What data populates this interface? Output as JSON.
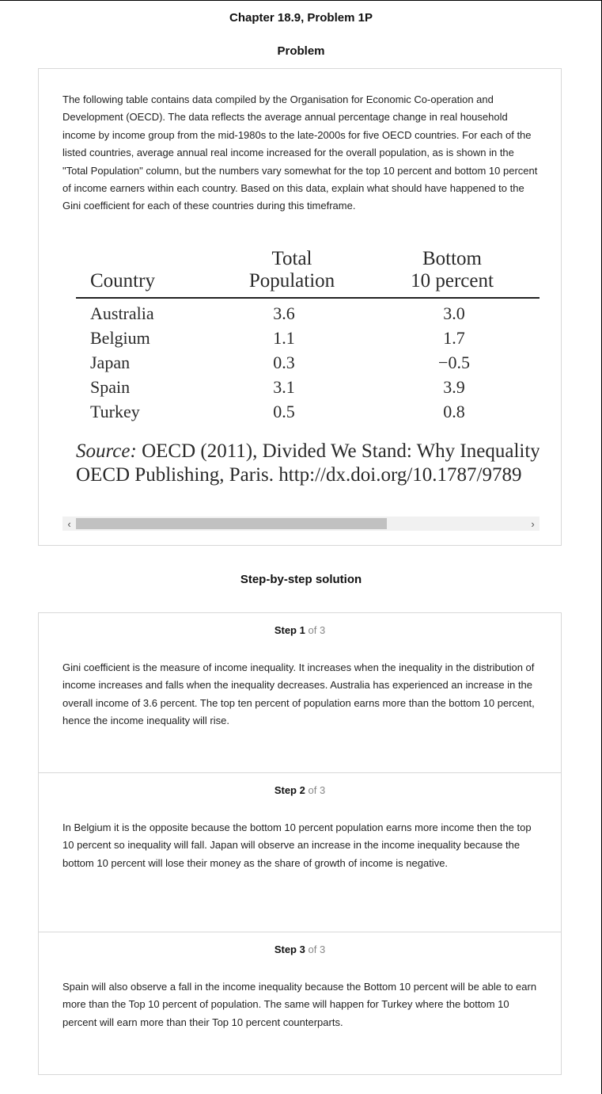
{
  "header": {
    "chapter_title": "Chapter 18.9, Problem 1P",
    "problem_heading": "Problem"
  },
  "problem": {
    "text": "The following table contains data compiled by the Organisation for Economic Co-operation and Development (OECD). The data reflects the average annual percentage change in real household income by income group from the mid-1980s to the late-2000s for five OECD countries. For each of the listed countries, average annual real income increased for the overall population, as is shown in the \"Total Population\" column, but the numbers vary somewhat for the top 10 percent and bottom 10 percent of income earners within each country. Based on this data, explain what should have happened to the Gini coefficient for each of these countries during this timeframe.",
    "table": {
      "headers": {
        "country": "Country",
        "total_line1": "Total",
        "total_line2": "Population",
        "bottom_line1": "Bottom",
        "bottom_line2": "10 percent"
      },
      "rows": [
        {
          "country": "Australia",
          "total": "3.6",
          "bottom": "3.0"
        },
        {
          "country": "Belgium",
          "total": "1.1",
          "bottom": "1.7"
        },
        {
          "country": "Japan",
          "total": "0.3",
          "bottom": "−0.5"
        },
        {
          "country": "Spain",
          "total": "3.1",
          "bottom": "3.9"
        },
        {
          "country": "Turkey",
          "total": "0.5",
          "bottom": "0.8"
        }
      ],
      "source_label": "Source:",
      "source_rest_line1": " OECD (2011), Divided We Stand: Why Inequality",
      "source_line2": "OECD Publishing, Paris. http://dx.doi.org/10.1787/9789"
    },
    "scrollbar": {
      "left_arrow_icon": "chevron-left-icon",
      "right_arrow_icon": "chevron-right-icon"
    }
  },
  "solution": {
    "heading": "Step-by-step solution",
    "steps": [
      {
        "word": "Step",
        "number": "1",
        "of": "of 3",
        "text": "Gini coefficient is the measure of income inequality. It increases when the inequality in the distribution of income increases and falls when the inequality decreases. Australia has experienced an increase in the overall income of 3.6 percent. The top ten percent of population earns more than the bottom 10 percent, hence the income inequality will rise."
      },
      {
        "word": "Step",
        "number": "2",
        "of": "of 3",
        "text": "In Belgium it is the opposite because the bottom 10 percent population earns more income then the top 10 percent so inequality will fall. Japan will observe an increase in the income inequality because the bottom 10 percent will lose their money as the share of growth of income is negative."
      },
      {
        "word": "Step",
        "number": "3",
        "of": "of 3",
        "text": "Spain will also observe a fall in the income inequality because the Bottom 10 percent will be able to earn more than the Top 10 percent of population. The same will happen for Turkey where the bottom 10 percent will earn more than their Top 10 percent counterparts."
      }
    ]
  }
}
